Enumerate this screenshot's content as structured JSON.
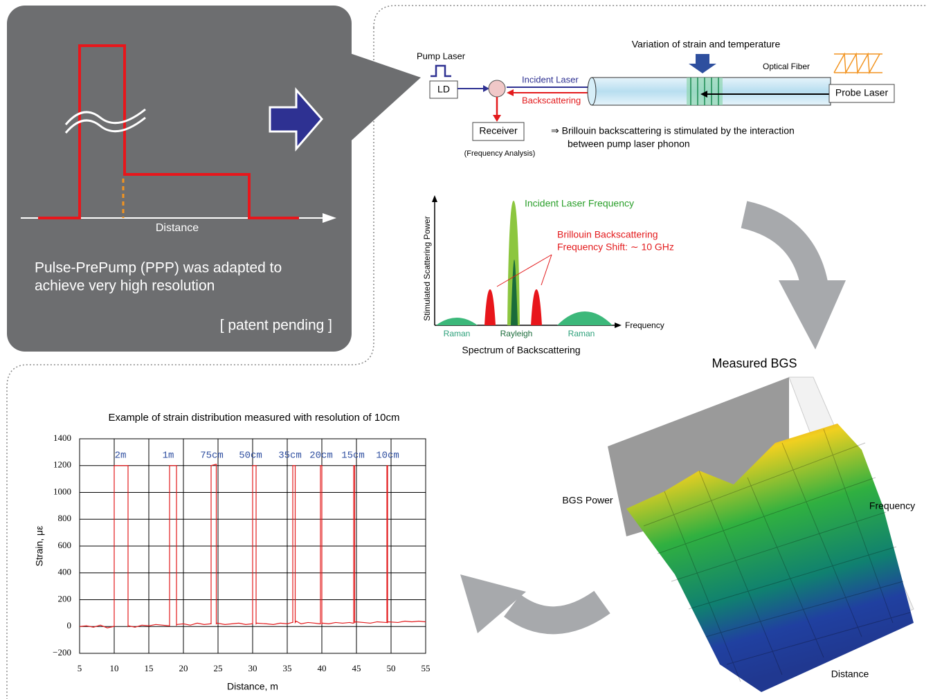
{
  "chart_data": {
    "type": "line",
    "title": "Example of strain distribution measured with resolution of 10cm",
    "x_label": "Distance, m",
    "y_label": "Strain, με",
    "x": [
      5,
      6,
      7,
      8,
      9,
      9.9,
      10,
      10,
      12,
      12,
      12.1,
      13,
      14,
      15,
      16,
      17,
      17.9,
      18,
      18,
      19,
      19,
      19.1,
      20,
      21,
      22,
      23,
      23.9,
      24,
      24,
      24.75,
      24.75,
      24.85,
      26,
      27,
      28,
      29,
      29.9,
      30,
      30,
      30.5,
      30.5,
      30.6,
      32,
      33,
      34,
      35,
      35.7,
      35.8,
      35.8,
      36.15,
      36.15,
      36.3,
      37,
      38,
      39,
      39.7,
      39.8,
      39.8,
      40,
      40,
      40.1,
      41,
      42,
      43,
      44,
      44.5,
      44.6,
      44.6,
      44.75,
      44.75,
      44.9,
      46,
      47,
      48,
      49.3,
      49.4,
      49.4,
      49.5,
      49.5,
      49.6,
      51,
      52,
      53,
      54,
      55
    ],
    "values": [
      0,
      5,
      -5,
      10,
      -10,
      0,
      0,
      1200,
      1200,
      0,
      5,
      -5,
      10,
      5,
      15,
      10,
      5,
      5,
      1200,
      1200,
      10,
      15,
      20,
      10,
      25,
      15,
      20,
      20,
      1200,
      1210,
      20,
      25,
      15,
      20,
      25,
      15,
      20,
      20,
      1200,
      1200,
      20,
      25,
      20,
      15,
      25,
      20,
      30,
      30,
      1200,
      1200,
      30,
      40,
      20,
      30,
      25,
      20,
      20,
      1200,
      1200,
      20,
      25,
      20,
      30,
      25,
      30,
      25,
      25,
      1200,
      1200,
      30,
      35,
      30,
      25,
      35,
      30,
      30,
      1200,
      1200,
      30,
      35,
      30,
      40,
      35,
      40,
      35
    ],
    "color": "#e31a1c",
    "annotations": [
      {
        "text": "2m",
        "x": 10.9
      },
      {
        "text": "1m",
        "x": 17.8
      },
      {
        "text": "75cm",
        "x": 24.1
      },
      {
        "text": "50cm",
        "x": 29.7
      },
      {
        "text": "35cm",
        "x": 35.4
      },
      {
        "text": "20cm",
        "x": 39.9
      },
      {
        "text": "15cm",
        "x": 44.5
      },
      {
        "text": "10cm",
        "x": 49.5
      }
    ],
    "annotation_color": "#2f4fa0",
    "xlim": [
      5,
      55
    ],
    "xticks": [
      5,
      10,
      15,
      20,
      25,
      30,
      35,
      40,
      45,
      50,
      55
    ],
    "ylim": [
      -200,
      1400
    ],
    "yticks": [
      {
        "value": -200,
        "label": "−200"
      },
      0,
      200,
      400,
      600,
      800,
      1000,
      1200,
      1400
    ],
    "grid": true
  },
  "ppp_panel": {
    "axis_label": "Distance",
    "caption": [
      "Pulse-PrePump (PPP) was adapted to",
      "achieve  very high resolution"
    ],
    "note": "[ patent pending ]"
  },
  "setup_diagram": {
    "pump_laser": "Pump Laser",
    "ld": "LD",
    "incident": "Incident Laser",
    "backscattering": "Backscattering",
    "receiver": "Receiver",
    "receiver_note": "(Frequency Analysis)",
    "variation": "Variation of strain and temperature",
    "fiber": "Optical Fiber",
    "probe": "Probe Laser",
    "explanation": [
      "⇒ Brillouin backscattering is stimulated by the interaction",
      "between pump laser phonon"
    ]
  },
  "spectrum_diagram": {
    "y_label": "Stimulated Scattering Power",
    "incident": "Incident Laser Frequency",
    "brillouin": [
      "Brillouin Backscattering",
      "Frequency Shift: ∼ 10 GHz"
    ],
    "x_label": "Frequency",
    "peaks": [
      "Raman",
      "Rayleigh",
      "Raman"
    ],
    "caption": "Spectrum of Backscattering"
  },
  "bgs_plot": {
    "title": "Measured BGS",
    "power": "BGS Power",
    "frequency": "Frequency",
    "distance": "Distance"
  }
}
